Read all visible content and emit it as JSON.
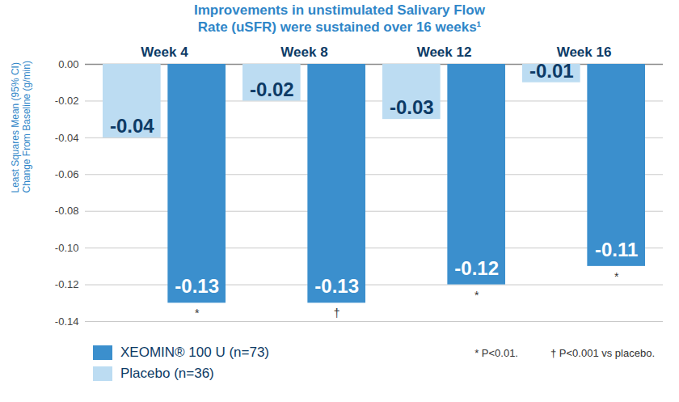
{
  "chart_data": {
    "type": "bar",
    "title": "Improvements in unstimulated Salivary Flow Rate (uSFR) were sustained over 16 weeks¹",
    "categories": [
      "Week 4",
      "Week 8",
      "Week 12",
      "Week 16"
    ],
    "series": [
      {
        "name": "XEOMIN® 100 U (n=73)",
        "color": "#3b8fcd",
        "values": [
          -0.13,
          -0.13,
          -0.12,
          -0.11
        ],
        "significance": [
          "*",
          "†",
          "*",
          "*"
        ]
      },
      {
        "name": "Placebo (n=36)",
        "color": "#bcdcf2",
        "values": [
          -0.04,
          -0.02,
          -0.03,
          -0.01
        ]
      }
    ],
    "y_label": "Least Squares Mean (95% CI)\nChange From Baseline (g/min)",
    "ylim": [
      -0.14,
      0
    ],
    "yticks": [
      {
        "value": 0,
        "label": "0.00"
      },
      -0.02,
      -0.04,
      -0.06,
      -0.08,
      {
        "value": -0.1,
        "label": "-0.10"
      },
      -0.12,
      -0.14
    ],
    "grid": true,
    "data_labels": true,
    "footnotes": [
      "* P<0.01.",
      "† P<0.001 vs placebo."
    ]
  }
}
